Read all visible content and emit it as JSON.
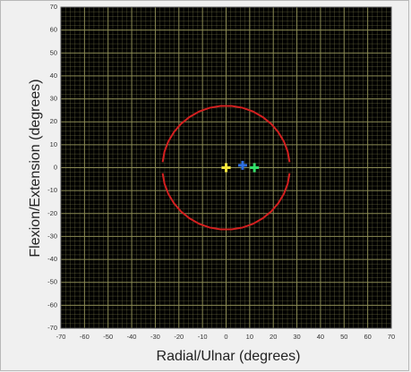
{
  "chart_data": {
    "type": "scatter",
    "xlabel": "Radial/Ulnar (degrees)",
    "ylabel": "Flexion/Extension (degrees)",
    "xlim": [
      -70,
      70
    ],
    "ylim": [
      -70,
      70
    ],
    "xticks": [
      -70,
      -60,
      -50,
      -40,
      -30,
      -20,
      -10,
      0,
      10,
      20,
      30,
      40,
      50,
      60,
      70
    ],
    "yticks": [
      -70,
      -60,
      -50,
      -40,
      -30,
      -20,
      -10,
      0,
      10,
      20,
      30,
      40,
      50,
      60,
      70
    ],
    "grid": true,
    "background": "#000000",
    "grid_color": "#8c8c55",
    "series": [
      {
        "type": "line",
        "color": "#d42020",
        "x": [
          26.9,
          26.1,
          24.5,
          22.1,
          19.1,
          15.5,
          11.4,
          7.0,
          2.4,
          -2.4,
          -7.0,
          -11.4,
          -15.5,
          -19.1,
          -22.1,
          -24.5,
          -26.1,
          -26.9,
          null,
          -26.9,
          -26.1,
          -24.5,
          -22.1,
          -19.1,
          -15.5,
          -11.4,
          -7.0,
          -2.4,
          2.4,
          7.0,
          11.4,
          15.5,
          19.1,
          22.1,
          24.5,
          26.1,
          26.9
        ],
        "y": [
          2.4,
          7.0,
          11.4,
          15.5,
          19.1,
          22.1,
          24.5,
          26.1,
          26.9,
          26.9,
          26.1,
          24.5,
          22.1,
          19.1,
          15.5,
          11.4,
          7.0,
          2.4,
          null,
          -2.4,
          -7.0,
          -11.4,
          -15.5,
          -19.1,
          -22.1,
          -24.5,
          -26.1,
          -26.9,
          -26.9,
          -26.1,
          -24.5,
          -22.1,
          -19.1,
          -15.5,
          -11.4,
          -7.0,
          -2.4
        ]
      },
      {
        "type": "marker",
        "color": "#f5e63c",
        "x": [
          0
        ],
        "y": [
          0
        ]
      },
      {
        "type": "marker",
        "color": "#2f6fe0",
        "x": [
          7
        ],
        "y": [
          1
        ]
      },
      {
        "type": "marker",
        "color": "#33e06a",
        "x": [
          12
        ],
        "y": [
          0
        ]
      }
    ]
  }
}
